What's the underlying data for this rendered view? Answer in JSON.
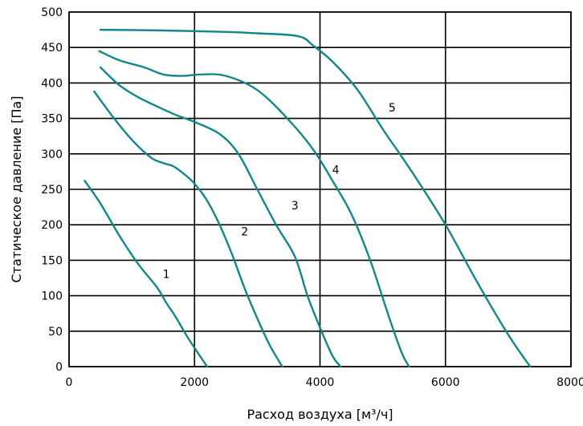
{
  "chart_data": {
    "type": "line",
    "title": "",
    "xlabel": "Расход воздуха [м³/ч]",
    "ylabel": "Статическое давление [Па]",
    "xlim": [
      0,
      8000
    ],
    "ylim": [
      0,
      500
    ],
    "x_ticks": [
      "0",
      "2000",
      "4000",
      "6000",
      "8000"
    ],
    "y_ticks": [
      "0",
      "50",
      "100",
      "150",
      "200",
      "250",
      "300",
      "350",
      "400",
      "450",
      "500"
    ],
    "grid": true,
    "line_color": "#12868d",
    "series": [
      {
        "label": "1",
        "label_pos": [
          1550,
          125
        ],
        "points": [
          [
            250,
            262
          ],
          [
            500,
            230
          ],
          [
            800,
            185
          ],
          [
            1100,
            145
          ],
          [
            1400,
            112
          ],
          [
            1550,
            90
          ],
          [
            1700,
            70
          ],
          [
            1900,
            40
          ],
          [
            2200,
            0
          ]
        ]
      },
      {
        "label": "2",
        "label_pos": [
          2800,
          185
        ],
        "points": [
          [
            400,
            388
          ],
          [
            700,
            352
          ],
          [
            1000,
            320
          ],
          [
            1300,
            295
          ],
          [
            1500,
            287
          ],
          [
            1650,
            283
          ],
          [
            1800,
            274
          ],
          [
            2000,
            258
          ],
          [
            2200,
            234
          ],
          [
            2400,
            200
          ],
          [
            2600,
            158
          ],
          [
            2800,
            110
          ],
          [
            3000,
            68
          ],
          [
            3200,
            30
          ],
          [
            3400,
            0
          ]
        ]
      },
      {
        "label": "3",
        "label_pos": [
          3600,
          222
        ],
        "points": [
          [
            500,
            422
          ],
          [
            800,
            397
          ],
          [
            1100,
            380
          ],
          [
            1400,
            367
          ],
          [
            1700,
            355
          ],
          [
            2000,
            345
          ],
          [
            2400,
            328
          ],
          [
            2700,
            300
          ],
          [
            3000,
            250
          ],
          [
            3300,
            200
          ],
          [
            3600,
            155
          ],
          [
            3800,
            100
          ],
          [
            4000,
            55
          ],
          [
            4200,
            15
          ],
          [
            4330,
            0
          ]
        ]
      },
      {
        "label": "4",
        "label_pos": [
          4250,
          272
        ],
        "points": [
          [
            480,
            445
          ],
          [
            800,
            432
          ],
          [
            1200,
            422
          ],
          [
            1500,
            412
          ],
          [
            1800,
            410
          ],
          [
            2100,
            412
          ],
          [
            2500,
            410
          ],
          [
            3000,
            390
          ],
          [
            3500,
            348
          ],
          [
            3900,
            305
          ],
          [
            4200,
            262
          ],
          [
            4500,
            215
          ],
          [
            4800,
            150
          ],
          [
            5100,
            70
          ],
          [
            5300,
            20
          ],
          [
            5420,
            0
          ]
        ]
      },
      {
        "label": "5",
        "label_pos": [
          5150,
          360
        ],
        "points": [
          [
            500,
            475
          ],
          [
            1500,
            474
          ],
          [
            2500,
            472
          ],
          [
            3000,
            470
          ],
          [
            3650,
            466
          ],
          [
            3900,
            452
          ],
          [
            4200,
            430
          ],
          [
            4600,
            390
          ],
          [
            5000,
            335
          ],
          [
            5500,
            270
          ],
          [
            6000,
            200
          ],
          [
            6500,
            120
          ],
          [
            7000,
            45
          ],
          [
            7350,
            0
          ]
        ]
      }
    ]
  }
}
